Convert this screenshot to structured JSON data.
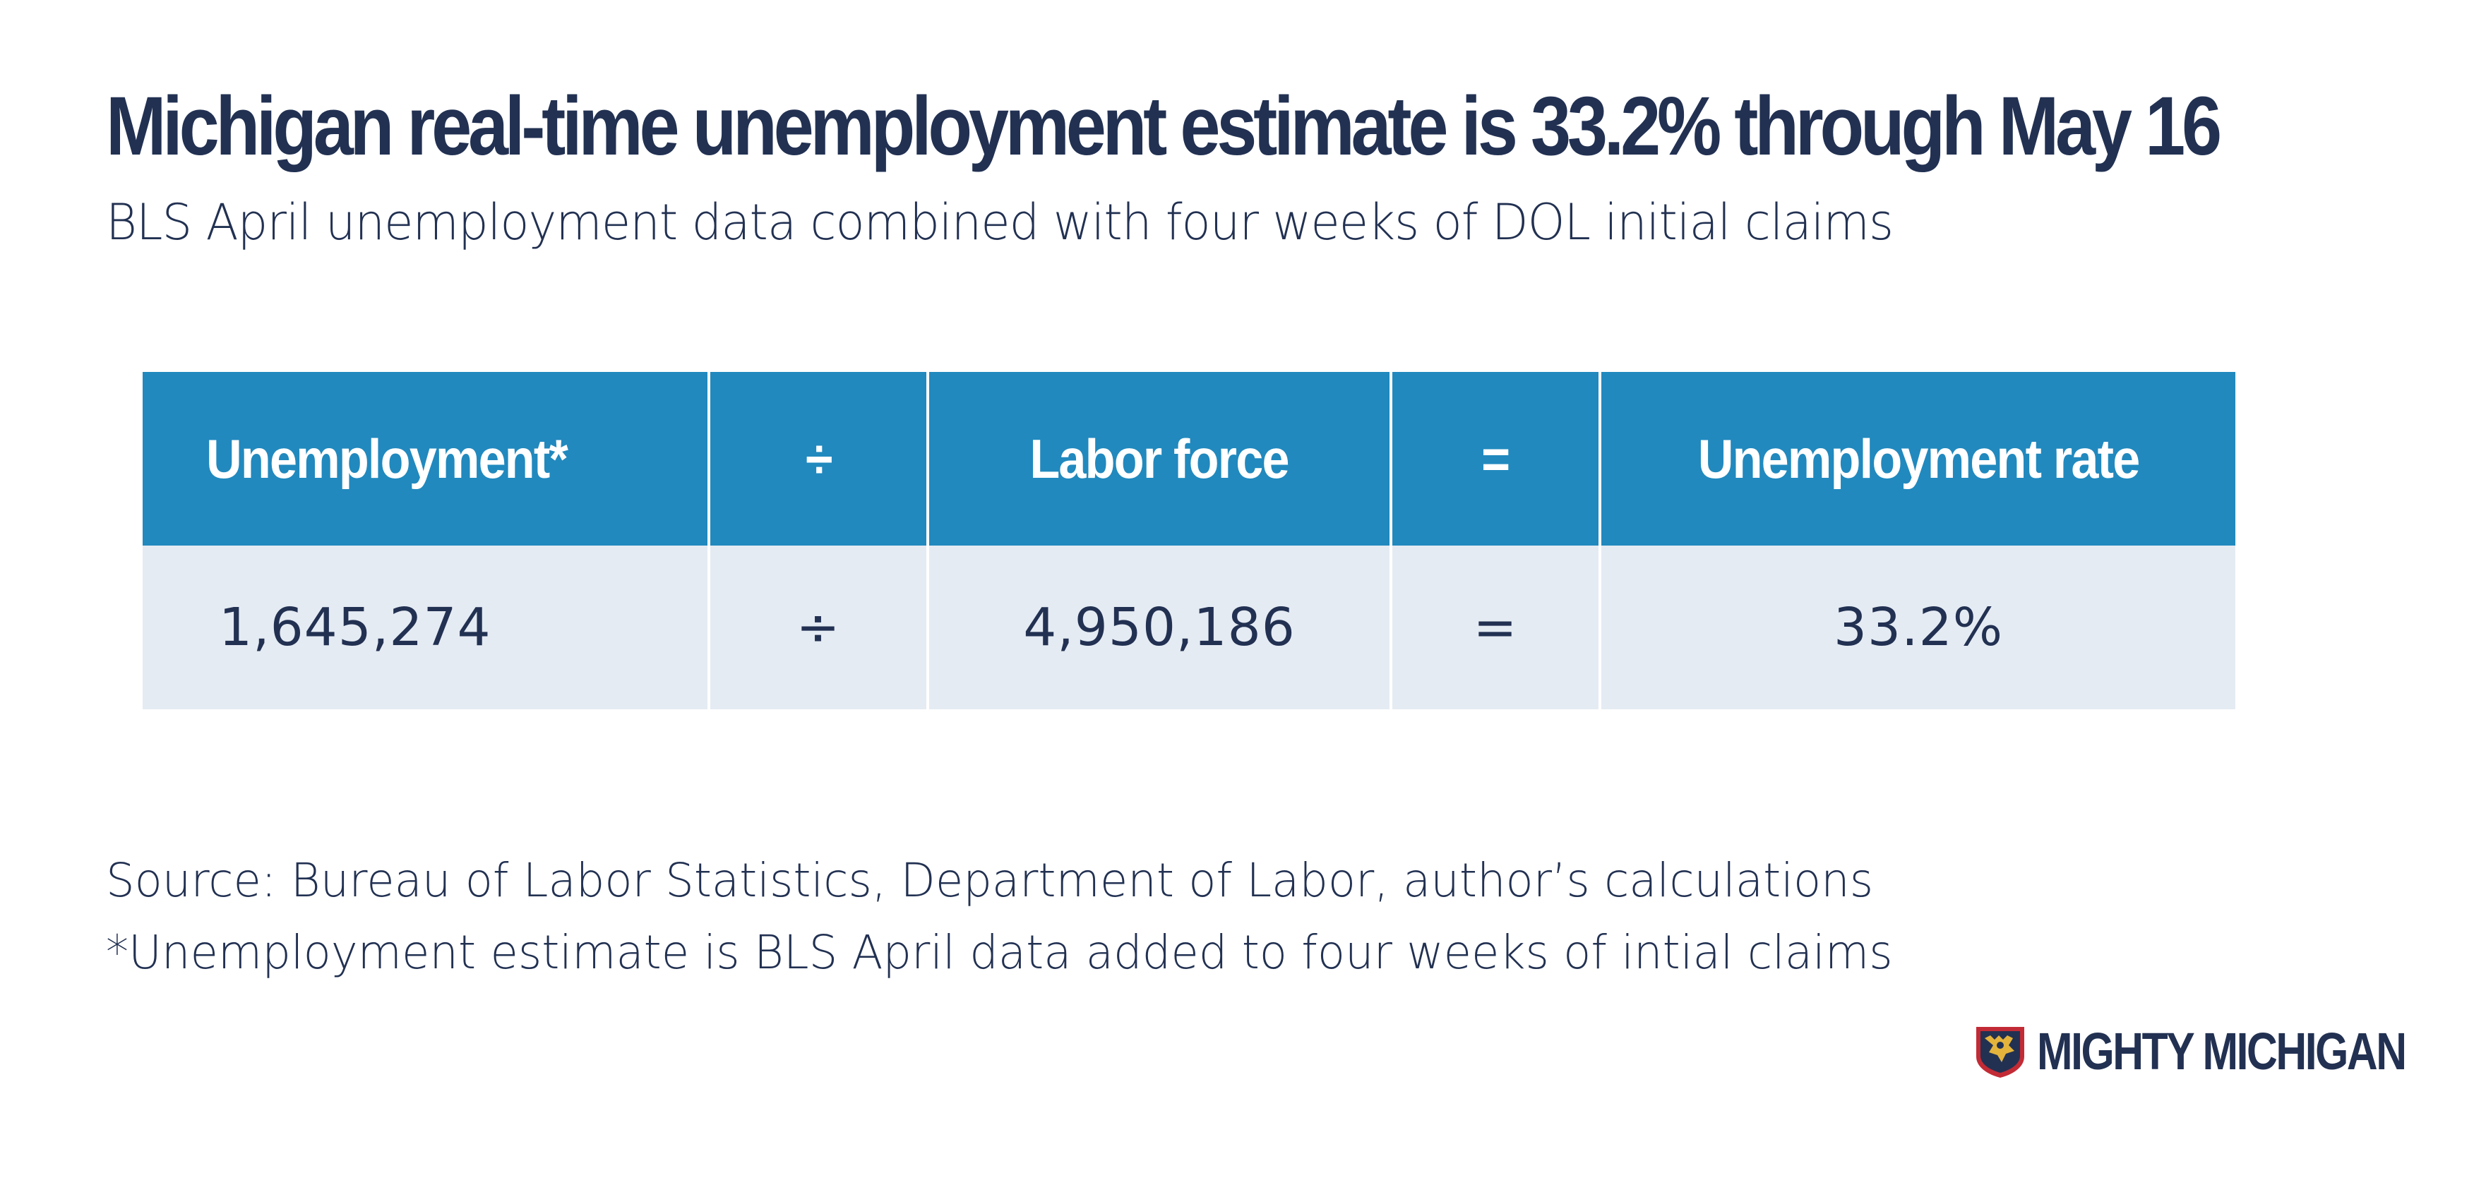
{
  "title": "Michigan real-time unemployment estimate is 33.2% through May 16",
  "subtitle": "BLS April unemployment data combined with four weeks of DOL initial claims",
  "chart_data": {
    "type": "table",
    "title": "Michigan real-time unemployment estimate is 33.2% through May 16",
    "subtitle": "BLS April unemployment data combined with four weeks of DOL initial claims",
    "columns": [
      "Unemployment*",
      "÷",
      "Labor force",
      "=",
      "Unemployment rate"
    ],
    "rows": [
      [
        "1,645,274",
        "÷",
        "4,950,186",
        "=",
        "33.2%"
      ]
    ],
    "values": {
      "unemployment": 1645274,
      "labor_force": 4950186,
      "unemployment_rate_percent": 33.2
    },
    "header_color": "#2189be",
    "row_color": "#e5ebf3"
  },
  "source": "Source: Bureau of Labor Statistics, Department of Labor, author’s calculations",
  "footnote": "*Unemployment estimate is BLS April data added to four weeks of intial claims",
  "brand": {
    "name": "MIGHTY MICHIGAN",
    "logo_icon": "michigan-shield-icon"
  },
  "colors": {
    "text": "#223152",
    "accent": "#2189be",
    "row_background": "#e5ebf3",
    "logo_red": "#c22b35",
    "logo_gold": "#e3b33c"
  }
}
